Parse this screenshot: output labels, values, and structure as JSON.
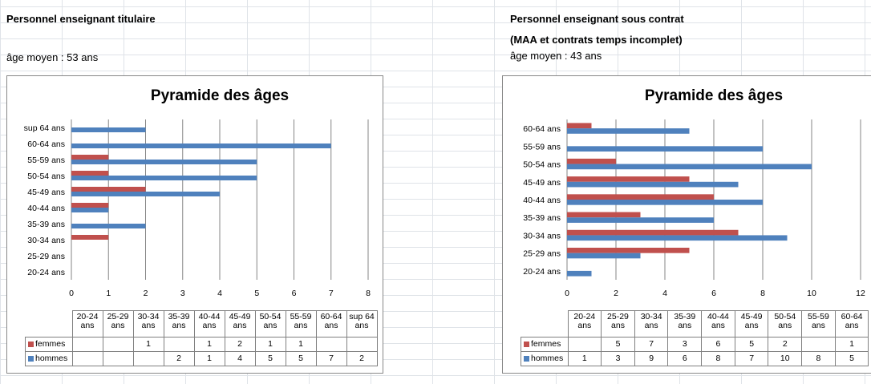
{
  "colors": {
    "femmes": "#c0504d",
    "hommes": "#4f81bd",
    "gridline": "#868686"
  },
  "left": {
    "heading": "Personnel enseignant titulaire",
    "subheading": "",
    "avg_age": "âge moyen :  53 ans",
    "table_row_femmes": "femmes",
    "table_row_hommes": "hommes"
  },
  "right": {
    "heading": "Personnel enseignant sous contrat",
    "subheading": "(MAA et contrats temps incomplet)",
    "avg_age": "âge moyen :  43 ans",
    "table_row_femmes": "femmes",
    "table_row_hommes": "hommes"
  },
  "chart_data": [
    {
      "type": "bar",
      "orientation": "horizontal",
      "title": "Pyramide des âges",
      "categories": [
        "20-24 ans",
        "25-29 ans",
        "30-34 ans",
        "35-39 ans",
        "40-44 ans",
        "45-49 ans",
        "50-54 ans",
        "55-59 ans",
        "60-64 ans",
        "sup 64 ans"
      ],
      "series": [
        {
          "name": "femmes",
          "values": [
            null,
            null,
            1,
            null,
            1,
            2,
            1,
            1,
            null,
            null
          ]
        },
        {
          "name": "hommes",
          "values": [
            null,
            null,
            null,
            2,
            1,
            4,
            5,
            5,
            7,
            2
          ]
        }
      ],
      "xlim": [
        0,
        8
      ],
      "xticks": [
        "0",
        "1",
        "2",
        "3",
        "4",
        "5",
        "6",
        "7",
        "8"
      ],
      "legend": "data-table",
      "grid": true
    },
    {
      "type": "bar",
      "orientation": "horizontal",
      "title": "Pyramide des âges",
      "categories": [
        "20-24 ans",
        "25-29 ans",
        "30-34 ans",
        "35-39 ans",
        "40-44 ans",
        "45-49 ans",
        "50-54 ans",
        "55-59 ans",
        "60-64 ans"
      ],
      "series": [
        {
          "name": "femmes",
          "values": [
            null,
            5,
            7,
            3,
            6,
            5,
            2,
            null,
            1
          ]
        },
        {
          "name": "hommes",
          "values": [
            1,
            3,
            9,
            6,
            8,
            7,
            10,
            8,
            5
          ]
        }
      ],
      "xlim": [
        0,
        12
      ],
      "xticks": [
        "0",
        "2",
        "4",
        "6",
        "8",
        "10",
        "12"
      ],
      "legend": "data-table",
      "grid": true
    }
  ]
}
